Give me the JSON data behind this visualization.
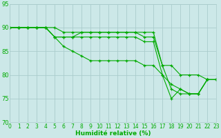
{
  "title": "",
  "xlabel": "Humidité relative (%)",
  "ylabel": "",
  "bg_color": "#cce8e8",
  "grid_color": "#aacccc",
  "line_color": "#00aa00",
  "marker": "+",
  "xlim": [
    0,
    23
  ],
  "ylim": [
    70,
    95
  ],
  "yticks": [
    70,
    75,
    80,
    85,
    90,
    95
  ],
  "xticks": [
    0,
    1,
    2,
    3,
    4,
    5,
    6,
    7,
    8,
    9,
    10,
    11,
    12,
    13,
    14,
    15,
    16,
    17,
    18,
    19,
    20,
    21,
    22,
    23
  ],
  "series": [
    [
      90,
      90,
      90,
      90,
      90,
      90,
      89,
      89,
      89,
      89,
      89,
      89,
      89,
      89,
      89,
      89,
      89,
      82,
      82,
      80,
      80,
      80,
      79,
      79
    ],
    [
      90,
      90,
      90,
      90,
      90,
      88,
      88,
      88,
      89,
      89,
      89,
      89,
      89,
      89,
      89,
      88,
      88,
      82,
      77,
      76,
      76,
      76,
      79,
      79
    ],
    [
      90,
      90,
      90,
      90,
      90,
      88,
      88,
      88,
      88,
      88,
      88,
      88,
      88,
      88,
      88,
      87,
      87,
      80,
      75,
      77,
      76,
      76,
      79,
      79
    ],
    [
      90,
      90,
      90,
      90,
      90,
      88,
      86,
      85,
      84,
      83,
      83,
      83,
      83,
      83,
      83,
      82,
      82,
      80,
      78,
      77,
      76,
      76,
      79,
      79
    ]
  ]
}
